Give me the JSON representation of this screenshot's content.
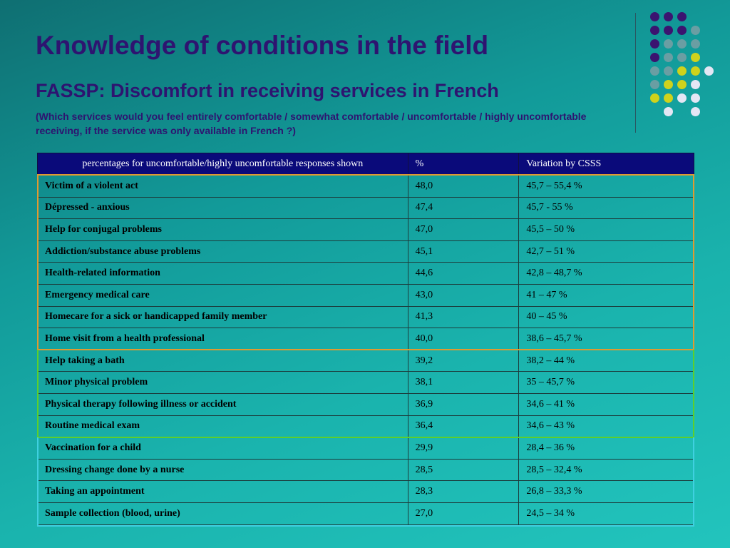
{
  "slide": {
    "title": "Knowledge of conditions in the field",
    "subtitle": "FASSP: Discomfort in receiving services in French",
    "question": "(Which services would you feel entirely comfortable / somewhat comfortable / uncomfortable /    highly uncomfortable receiving, if the service was only available in French ?)"
  },
  "colors": {
    "title": "#2e1470",
    "header_bg": "#0a0a7a",
    "group_orange": "#e09a30",
    "group_green": "#5ccf2c",
    "group_cyan": "#3fd0e0"
  },
  "table": {
    "headers": [
      "percentages for uncomfortable/highly uncomfortable responses shown",
      "%",
      "Variation by CSSS"
    ],
    "rows": [
      [
        "Victim of a violent act",
        "48,0",
        "45,7 – 55,4 %"
      ],
      [
        "Dépressed - anxious",
        "47,4",
        "45,7 - 55 %"
      ],
      [
        "Help for conjugal problems",
        "47,0",
        "45,5 – 50 %"
      ],
      [
        "Addiction/substance abuse problems",
        "45,1",
        "42,7 – 51 %"
      ],
      [
        "Health-related information",
        "44,6",
        "42,8 – 48,7 %"
      ],
      [
        "Emergency medical care",
        "43,0",
        "41 – 47 %"
      ],
      [
        "Homecare for a sick or handicapped family member",
        "41,3",
        "40 – 45 %"
      ],
      [
        "Home visit from a health professional",
        "40,0",
        "38,6 – 45,7 %"
      ],
      [
        "Help taking a bath",
        "39,2",
        "38,2 – 44 %"
      ],
      [
        "Minor physical problem",
        "38,1",
        "35 – 45,7 %"
      ],
      [
        "Physical therapy following illness or accident",
        "36,9",
        "34,6 – 41 %"
      ],
      [
        "Routine medical exam",
        "36,4",
        "34,6 – 43 %"
      ],
      [
        "Vaccination for a child",
        "29,9",
        "28,4 – 36 %"
      ],
      [
        "Dressing change done by a nurse",
        "28,5",
        "28,5 – 32,4 %"
      ],
      [
        "Taking an appointment",
        "28,3",
        "26,8 – 33,3 %"
      ],
      [
        "Sample collection (blood, urine)",
        "27,0",
        "24,5 – 34 %"
      ]
    ]
  }
}
